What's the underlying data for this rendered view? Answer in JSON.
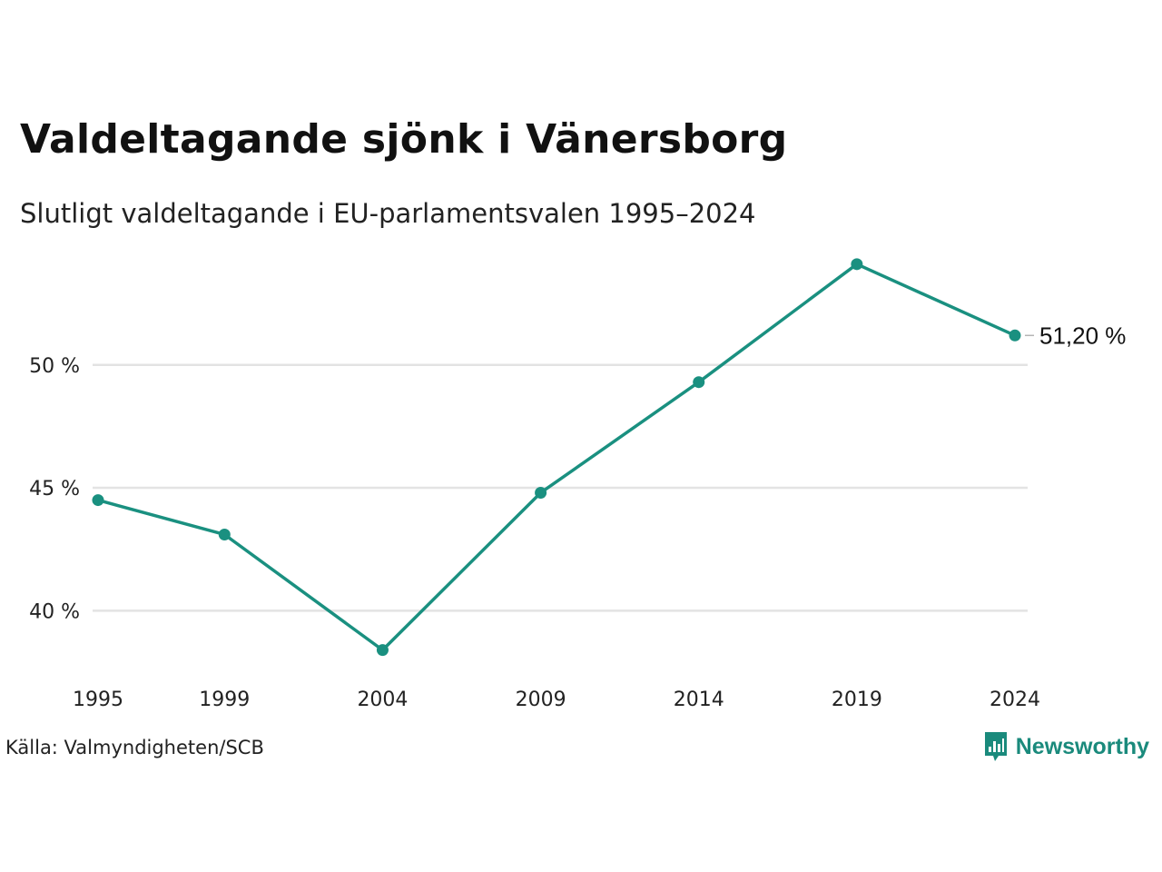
{
  "title": "Valdeltagande sjönk i Vänersborg",
  "subtitle": "Slutligt valdeltagande i EU-parlamentsvalen 1995–2024",
  "source": "Källa: Valmyndigheten/SCB",
  "brand": {
    "name": "Newsworthy",
    "icon": "newsworthy-logo-icon"
  },
  "colors": {
    "line": "#1a9080",
    "grid": "#e3e3e3",
    "brand": "#1a8a7c"
  },
  "chart_data": {
    "type": "line",
    "title": "Valdeltagande sjönk i Vänersborg",
    "subtitle": "Slutligt valdeltagande i EU-parlamentsvalen 1995–2024",
    "x": [
      "1995",
      "1999",
      "2004",
      "2009",
      "2014",
      "2019",
      "2024"
    ],
    "series": [
      {
        "values": [
          44.5,
          43.1,
          38.4,
          44.8,
          49.3,
          54.1,
          51.2
        ]
      }
    ],
    "yticks": [
      40,
      45,
      50
    ],
    "ytick_labels": [
      "40 %",
      "45 %",
      "50 %"
    ],
    "ylim": [
      37.5,
      54.5
    ],
    "grid": "horizontal",
    "end_label": "51,20 %",
    "xlabel": "",
    "ylabel": ""
  }
}
